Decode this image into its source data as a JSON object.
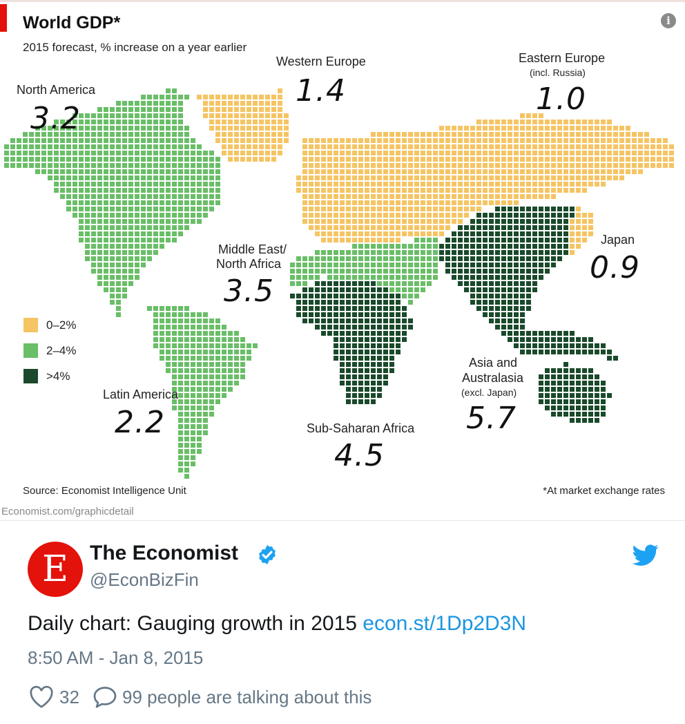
{
  "chart": {
    "title": "World GDP*",
    "subtitle": "2015 forecast, % increase on a year earlier",
    "source": "Source: Economist Intelligence Unit",
    "footnote": "*At market exchange rates",
    "credit": "Economist.com/graphicdetail",
    "info_icon": "info-icon"
  },
  "chart_data": {
    "type": "map",
    "regions": [
      {
        "name": "North America",
        "note": "",
        "value": "3.2",
        "band": "2-4%"
      },
      {
        "name": "Western Europe",
        "note": "",
        "value": "1.4",
        "band": "0-2%"
      },
      {
        "name": "Eastern Europe",
        "note": "(incl. Russia)",
        "value": "1.0",
        "band": "0-2%"
      },
      {
        "name": "Japan",
        "note": "",
        "value": "0.9",
        "band": "0-2%"
      },
      {
        "name": "Middle East/",
        "name2": "North Africa",
        "note": "",
        "value": "3.5",
        "band": "2-4%"
      },
      {
        "name": "Latin America",
        "note": "",
        "value": "2.2",
        "band": "2-4%"
      },
      {
        "name": "Sub-Saharan Africa",
        "note": "",
        "value": "4.5",
        "band": ">4%"
      },
      {
        "name": "Asia and",
        "name2": "Australasia",
        "note": "(excl. Japan)",
        "value": "5.7",
        "band": ">4%"
      }
    ],
    "legend": [
      {
        "label": "0–2%",
        "color": "#f5c463"
      },
      {
        "label": "2–4%",
        "color": "#69be67"
      },
      {
        "label": ">4%",
        "color": "#1a4a2b"
      }
    ]
  },
  "tweet": {
    "author": "The Economist",
    "avatar_letter": "E",
    "handle": "@EconBizFin",
    "text": "Daily chart: Gauging growth in 2015 ",
    "link": "econ.st/1Dp2D3N",
    "timestamp": "8:50 AM - Jan 8, 2015",
    "likes": "32",
    "talking": "99 people are talking about this",
    "icons": {
      "verified": "verified-badge-icon",
      "brand": "twitter-bird-icon",
      "like": "heart-icon",
      "reply": "comment-bubble-icon"
    },
    "colors": {
      "brand_red": "#e3120b",
      "link_blue": "#1b95e0",
      "verified_blue": "#1da1f2",
      "muted": "#657786"
    }
  }
}
